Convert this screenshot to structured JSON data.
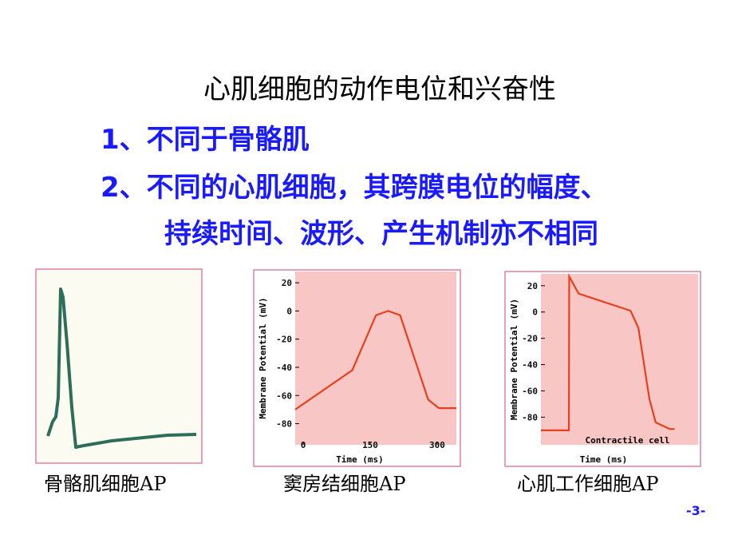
{
  "title": "心肌细胞的动作电位和兴奋性",
  "points": [
    "1、不同于骨骼肌",
    "2、不同的心肌细胞，其跨膜电位的幅度、",
    "持续时间、波形、产生机制亦不相同"
  ],
  "captions": [
    "骨骼肌细胞AP",
    "窦房结细胞AP",
    "心肌工作细胞AP"
  ],
  "page_number": "-3-",
  "chart_data": [
    {
      "type": "line",
      "x_label": "Time (ms)",
      "y_label": "Membrane Potential (mV)",
      "xlim": [
        -18,
        343
      ],
      "xticks": [
        0,
        150,
        300
      ],
      "ylim": [
        -95,
        28
      ],
      "yticks": [
        20,
        0,
        -20,
        -40,
        -60,
        -80
      ],
      "series": [
        {
          "color": "#e8401c",
          "x": [
            -18,
            110,
            163,
            190,
            217,
            280,
            304,
            343
          ],
          "values": [
            -70,
            -42,
            -3,
            0,
            -3,
            -63,
            -69,
            -69
          ]
        }
      ]
    },
    {
      "type": "line",
      "x_label": "Time (ms)",
      "y_label": "Membrane Potential (mV)",
      "annotation": "Contractile cell",
      "xlim": [
        0,
        100
      ],
      "ylim": [
        -101,
        29
      ],
      "yticks": [
        20,
        0,
        -20,
        -40,
        -60,
        -80
      ],
      "series": [
        {
          "color": "#e8401c",
          "x": [
            0,
            17.8,
            18,
            24,
            57,
            62,
            69,
            73,
            82,
            85
          ],
          "values": [
            -90,
            -90,
            27,
            14,
            1,
            -12,
            -66,
            -84,
            -89,
            -89
          ]
        }
      ]
    }
  ]
}
